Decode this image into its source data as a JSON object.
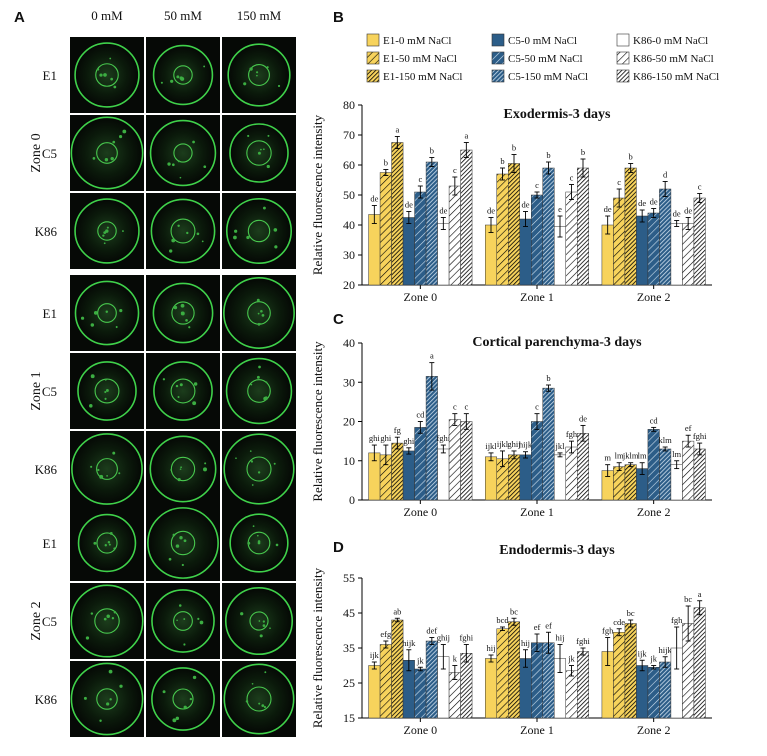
{
  "micrographs": {
    "panel": "A",
    "columns": [
      "0 mM",
      "50 mM",
      "150 mM"
    ],
    "rows": [
      "E1",
      "C5",
      "K86"
    ],
    "zones": [
      "Zone 0",
      "Zone 1",
      "Zone 2"
    ]
  },
  "chart_data": [
    {
      "type": "bar",
      "panel": "B",
      "title": "Exodermis-3 days",
      "y_label": "Relative fluorescence intensity",
      "categories": [
        "Zone 0",
        "Zone 1",
        "Zone 2"
      ],
      "ylim": [
        20,
        80
      ],
      "yticks": [
        20,
        30,
        40,
        50,
        60,
        70,
        80
      ],
      "series": [
        {
          "name": "E1-0 mM NaCl",
          "color": "#f7d35c",
          "pattern": "solid",
          "hatch_color": "#000",
          "values": [
            43.5,
            40,
            40
          ],
          "errors": [
            3,
            2.5,
            3
          ],
          "letters": [
            "de",
            "de",
            "de"
          ]
        },
        {
          "name": "E1-50 mM NaCl",
          "color": "#f7d35c",
          "pattern": "hatch",
          "hatch_color": "#000",
          "values": [
            57.5,
            57,
            49
          ],
          "errors": [
            1,
            2,
            3
          ],
          "letters": [
            "b",
            "b",
            "c"
          ]
        },
        {
          "name": "E1-150 mM NaCl",
          "color": "#f7d35c",
          "pattern": "dense-hatch",
          "hatch_color": "#000",
          "values": [
            67.5,
            60.5,
            59
          ],
          "errors": [
            2,
            3,
            1.5
          ],
          "letters": [
            "a",
            "b",
            "b"
          ]
        },
        {
          "name": "C5-0 mM NaCl",
          "color": "#2c5d88",
          "pattern": "solid",
          "hatch_color": "#cfe0ee",
          "values": [
            42.5,
            42,
            43
          ],
          "errors": [
            2,
            2.5,
            2
          ],
          "letters": [
            "de",
            "de",
            "de"
          ]
        },
        {
          "name": "C5-50 mM NaCl",
          "color": "#2c5d88",
          "pattern": "hatch",
          "hatch_color": "#cfe0ee",
          "values": [
            51,
            50,
            44
          ],
          "errors": [
            2,
            1,
            1.5
          ],
          "letters": [
            "c",
            "c",
            "de"
          ]
        },
        {
          "name": "C5-150 mM NaCl",
          "color": "#2c5d88",
          "pattern": "dense-hatch",
          "hatch_color": "#cfe0ee",
          "values": [
            61,
            59,
            52
          ],
          "errors": [
            1.5,
            2,
            2.5
          ],
          "letters": [
            "b",
            "b",
            "d"
          ]
        },
        {
          "name": "K86-0 mM NaCl",
          "color": "#ffffff",
          "pattern": "solid",
          "hatch_color": "#000",
          "values": [
            40.5,
            39.5,
            40.5
          ],
          "errors": [
            2,
            3.5,
            1
          ],
          "letters": [
            "de",
            "e",
            "de"
          ]
        },
        {
          "name": "K86-50 mM NaCl",
          "color": "#ffffff",
          "pattern": "hatch",
          "hatch_color": "#000",
          "values": [
            53,
            51,
            40.5
          ],
          "errors": [
            3,
            2.5,
            2
          ],
          "letters": [
            "c",
            "c",
            "de"
          ]
        },
        {
          "name": "K86-150 mM NaCl",
          "color": "#ffffff",
          "pattern": "dense-hatch",
          "hatch_color": "#000",
          "values": [
            65,
            59,
            49
          ],
          "errors": [
            2.5,
            3,
            1.5
          ],
          "letters": [
            "a",
            "b",
            "c"
          ]
        }
      ]
    },
    {
      "type": "bar",
      "panel": "C",
      "title": "Cortical parenchyma-3 days",
      "y_label": "Relative fluorescence intensity",
      "categories": [
        "Zone 0",
        "Zone 1",
        "Zone 2"
      ],
      "ylim": [
        0,
        40
      ],
      "yticks": [
        0,
        10,
        20,
        30,
        40
      ],
      "series": [
        {
          "color": "#f7d35c",
          "pattern": "solid",
          "hatch_color": "#000",
          "values": [
            12,
            11,
            7.5
          ],
          "errors": [
            2,
            1,
            1.5
          ],
          "letters": [
            "ghi",
            "ijkl",
            "m"
          ]
        },
        {
          "color": "#f7d35c",
          "pattern": "hatch",
          "hatch_color": "#000",
          "values": [
            11.5,
            10.5,
            8.5
          ],
          "errors": [
            2.5,
            2,
            1
          ],
          "letters": [
            "ghi",
            "ijkl",
            "lm"
          ]
        },
        {
          "color": "#f7d35c",
          "pattern": "dense-hatch",
          "hatch_color": "#000",
          "values": [
            14.5,
            11.5,
            9
          ],
          "errors": [
            1.5,
            1,
            0.5
          ],
          "letters": [
            "fg",
            "ghij",
            "jklm"
          ]
        },
        {
          "color": "#2c5d88",
          "pattern": "solid",
          "hatch_color": "#cfe0ee",
          "values": [
            12.5,
            11.5,
            8
          ],
          "errors": [
            0.8,
            0.8,
            1.5
          ],
          "letters": [
            "ghi",
            "hijk",
            "lm"
          ]
        },
        {
          "color": "#2c5d88",
          "pattern": "hatch",
          "hatch_color": "#cfe0ee",
          "values": [
            18.5,
            20,
            18
          ],
          "errors": [
            1.5,
            2,
            0.5
          ],
          "letters": [
            "cd",
            "c",
            "cd"
          ]
        },
        {
          "color": "#2c5d88",
          "pattern": "dense-hatch",
          "hatch_color": "#cfe0ee",
          "values": [
            31.5,
            28.5,
            13
          ],
          "errors": [
            3.5,
            0.8,
            0.5
          ],
          "letters": [
            "a",
            "b",
            "klm"
          ]
        },
        {
          "color": "#ffffff",
          "pattern": "solid",
          "hatch_color": "#000",
          "values": [
            13,
            11.5,
            9
          ],
          "errors": [
            1,
            0.5,
            1
          ],
          "letters": [
            "fghi",
            "jkl",
            "lm"
          ]
        },
        {
          "color": "#ffffff",
          "pattern": "hatch",
          "hatch_color": "#000",
          "values": [
            20.5,
            13.5,
            15
          ],
          "errors": [
            1.5,
            1.5,
            1.5
          ],
          "letters": [
            "c",
            "fgh",
            "ef"
          ]
        },
        {
          "color": "#ffffff",
          "pattern": "dense-hatch",
          "hatch_color": "#000",
          "values": [
            20,
            17,
            13
          ],
          "errors": [
            2,
            2,
            1.5
          ],
          "letters": [
            "c",
            "de",
            "fghi"
          ]
        }
      ]
    },
    {
      "type": "bar",
      "panel": "D",
      "title": "Endodermis-3 days",
      "y_label": "Relative fluorescence intensity",
      "categories": [
        "Zone 0",
        "Zone 1",
        "Zone 2"
      ],
      "ylim": [
        15,
        55
      ],
      "yticks": [
        15,
        25,
        35,
        45,
        55
      ],
      "series": [
        {
          "color": "#f7d35c",
          "pattern": "solid",
          "hatch_color": "#000",
          "values": [
            30,
            32,
            34
          ],
          "errors": [
            1,
            1,
            4
          ],
          "letters": [
            "ijk",
            "hij",
            "fgh"
          ]
        },
        {
          "color": "#f7d35c",
          "pattern": "hatch",
          "hatch_color": "#000",
          "values": [
            36,
            40.5,
            39.5
          ],
          "errors": [
            1,
            0.5,
            1
          ],
          "letters": [
            "efg",
            "bcd",
            "cde"
          ]
        },
        {
          "color": "#f7d35c",
          "pattern": "dense-hatch",
          "hatch_color": "#000",
          "values": [
            43,
            42.5,
            42
          ],
          "errors": [
            0.5,
            1,
            1
          ],
          "letters": [
            "ab",
            "bc",
            "bc"
          ]
        },
        {
          "color": "#2c5d88",
          "pattern": "solid",
          "hatch_color": "#cfe0ee",
          "values": [
            31.5,
            32,
            30
          ],
          "errors": [
            3,
            2.5,
            1.5
          ],
          "letters": [
            "hijk",
            "hij",
            "ijk"
          ]
        },
        {
          "color": "#2c5d88",
          "pattern": "hatch",
          "hatch_color": "#cfe0ee",
          "values": [
            29,
            36.5,
            29.5
          ],
          "errors": [
            0.5,
            2.5,
            0.5
          ],
          "letters": [
            "jk",
            "ef",
            "jk"
          ]
        },
        {
          "color": "#2c5d88",
          "pattern": "dense-hatch",
          "hatch_color": "#cfe0ee",
          "values": [
            37,
            36.5,
            31
          ],
          "errors": [
            1,
            3,
            1.5
          ],
          "letters": [
            "def",
            "ef",
            "hijk"
          ]
        },
        {
          "color": "#ffffff",
          "pattern": "solid",
          "hatch_color": "#000",
          "values": [
            32.5,
            32,
            35
          ],
          "errors": [
            3.5,
            4,
            6
          ],
          "letters": [
            "ghij",
            "hij",
            "fgh"
          ]
        },
        {
          "color": "#ffffff",
          "pattern": "hatch",
          "hatch_color": "#000",
          "values": [
            28,
            28.5,
            42
          ],
          "errors": [
            2,
            1.5,
            5
          ],
          "letters": [
            "k",
            "jk",
            "bc"
          ]
        },
        {
          "color": "#ffffff",
          "pattern": "dense-hatch",
          "hatch_color": "#000",
          "values": [
            33.5,
            34,
            46.5
          ],
          "errors": [
            2.5,
            1,
            2
          ],
          "letters": [
            "fghi",
            "fghi",
            "a"
          ]
        }
      ]
    }
  ]
}
